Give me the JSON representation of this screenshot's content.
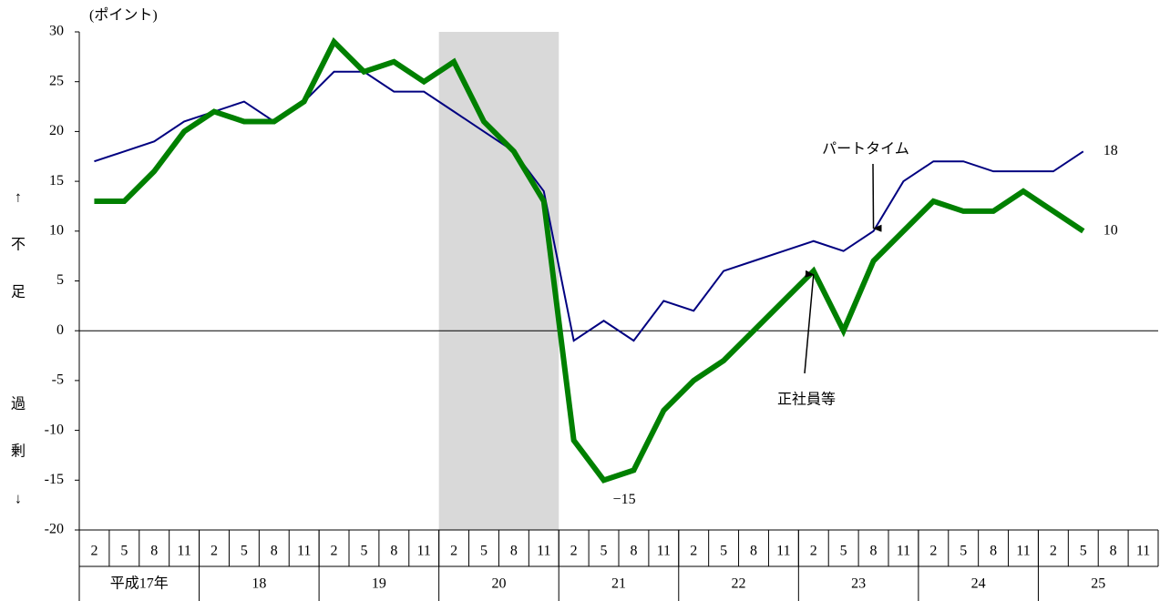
{
  "chart_data": {
    "type": "line",
    "y_label": "(ポイント)",
    "side_labels": {
      "shortage": [
        "↑",
        "不",
        "足"
      ],
      "surplus": [
        "過",
        "剰",
        "↓"
      ]
    },
    "categories": [
      "2",
      "5",
      "8",
      "11",
      "2",
      "5",
      "8",
      "11",
      "2",
      "5",
      "8",
      "11",
      "2",
      "5",
      "8",
      "11",
      "2",
      "5",
      "8",
      "11",
      "2",
      "5",
      "8",
      "11",
      "2",
      "5",
      "8",
      "11",
      "2",
      "5",
      "8",
      "11",
      "2",
      "5",
      "8",
      "11"
    ],
    "groups": [
      {
        "label": "平成17年",
        "span": 4
      },
      {
        "label": "18",
        "span": 4
      },
      {
        "label": "19",
        "span": 4
      },
      {
        "label": "20",
        "span": 4
      },
      {
        "label": "21",
        "span": 4
      },
      {
        "label": "22",
        "span": 4
      },
      {
        "label": "23",
        "span": 4
      },
      {
        "label": "24",
        "span": 4
      },
      {
        "label": "25",
        "span": 4
      }
    ],
    "shaded": {
      "from": 12,
      "to": 15,
      "color": "#d9d9d9"
    },
    "zero_line": true,
    "ylim": [
      -20,
      30
    ],
    "yticks": [
      -20,
      -15,
      -10,
      -5,
      0,
      5,
      10,
      15,
      20,
      25,
      30
    ],
    "series": [
      {
        "name": "パートタイム",
        "color": "#000080",
        "width": 2,
        "values": [
          17,
          18,
          19,
          21,
          22,
          23,
          21,
          23,
          26,
          26,
          24,
          24,
          22,
          20,
          18,
          14,
          -1,
          1,
          -1,
          3,
          2,
          6,
          7,
          8,
          9,
          8,
          10,
          15,
          17,
          17,
          16,
          16,
          16,
          18,
          null,
          null
        ],
        "value_labels": [
          null,
          null,
          null,
          null,
          null,
          null,
          null,
          null,
          null,
          null,
          null,
          null,
          null,
          null,
          null,
          null,
          null,
          null,
          null,
          null,
          null,
          null,
          null,
          null,
          null,
          null,
          null,
          null,
          null,
          null,
          null,
          null,
          null,
          "18",
          null,
          null
        ],
        "annotation_index": 26
      },
      {
        "name": "正社員等",
        "color": "#008000",
        "width": 6,
        "values": [
          13,
          13,
          16,
          20,
          22,
          21,
          21,
          23,
          29,
          26,
          27,
          25,
          27,
          21,
          18,
          13,
          -11,
          -15,
          -14,
          -8,
          -5,
          -3,
          0,
          3,
          6,
          0,
          7,
          10,
          13,
          12,
          12,
          14,
          12,
          10,
          null,
          null
        ],
        "value_labels": [
          null,
          null,
          null,
          null,
          null,
          null,
          null,
          null,
          null,
          null,
          null,
          null,
          null,
          null,
          null,
          null,
          null,
          "−15",
          null,
          null,
          null,
          null,
          null,
          null,
          null,
          null,
          null,
          null,
          null,
          null,
          null,
          null,
          null,
          "10",
          null,
          null
        ],
        "annotation_index": 24
      }
    ]
  }
}
